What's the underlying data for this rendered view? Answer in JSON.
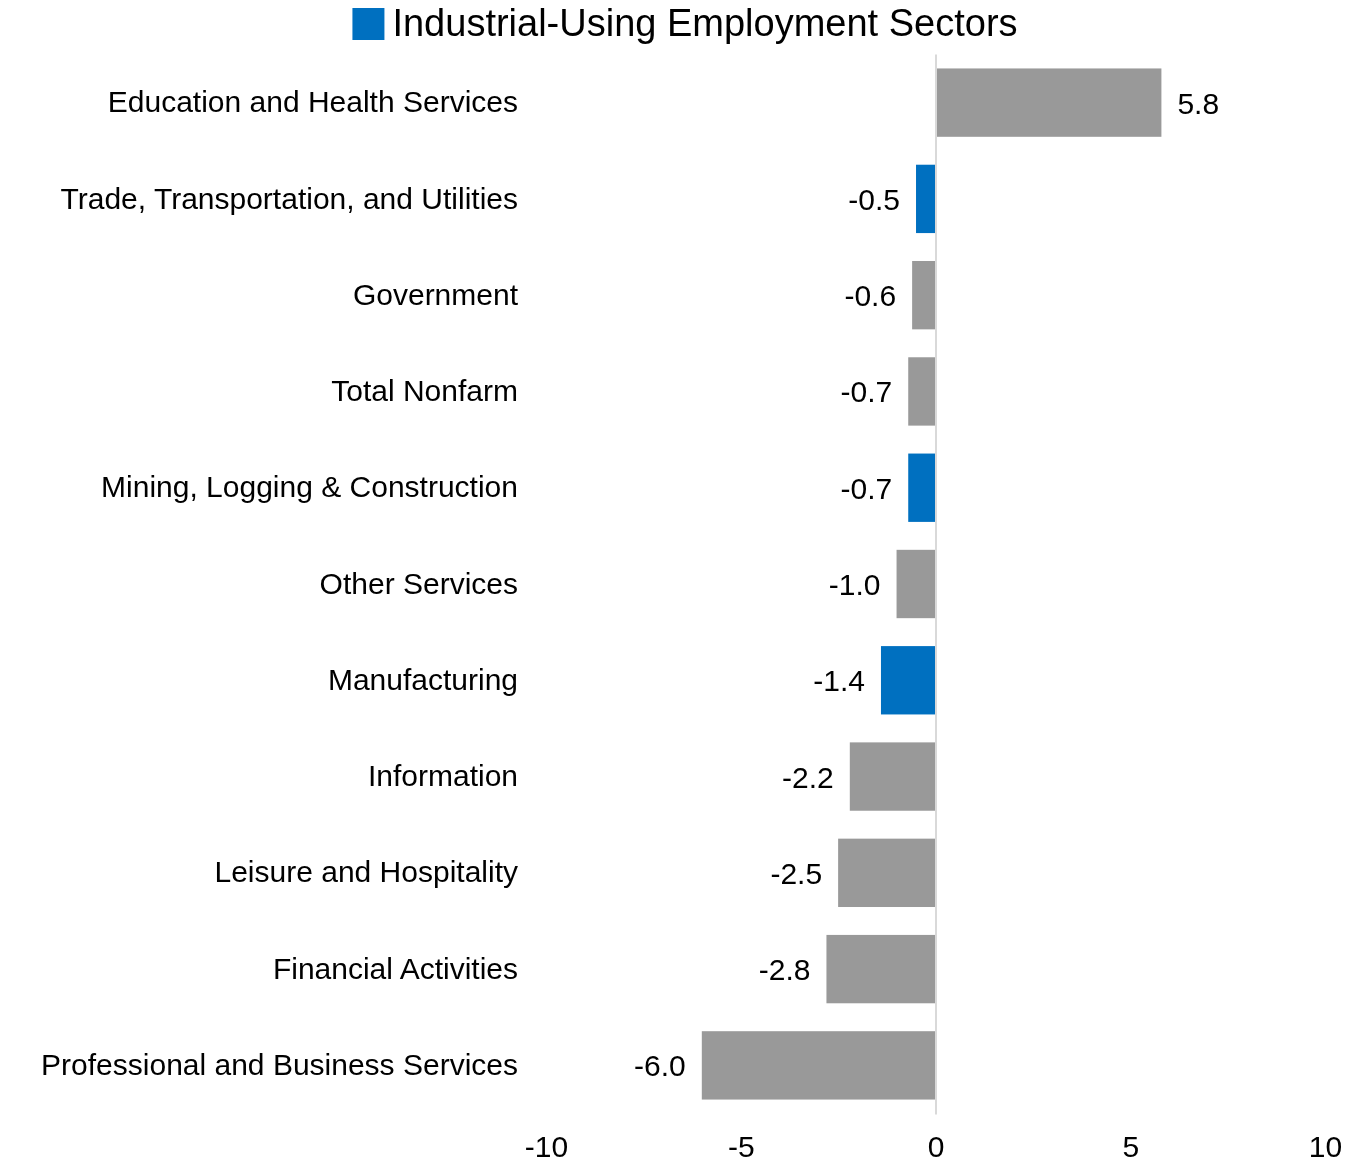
{
  "chart_data": {
    "type": "bar",
    "orientation": "horizontal",
    "categories": [
      "Education and Health Services",
      "Trade, Transportation, and Utilities",
      "Government",
      "Total Nonfarm",
      "Mining, Logging & Construction",
      "Other Services",
      "Manufacturing",
      "Information",
      "Leisure and Hospitality",
      "Financial Activities",
      "Professional and Business Services"
    ],
    "series": [
      {
        "color": "#999999",
        "values": [
          5.8,
          null,
          -0.6,
          -0.7,
          null,
          -1.0,
          null,
          -2.2,
          -2.5,
          -2.8,
          -6.0
        ]
      },
      {
        "name": "Industrial-Using Employment Sectors",
        "color": "#0070c0",
        "values": [
          null,
          -0.5,
          null,
          null,
          -0.7,
          null,
          -1.4,
          null,
          null,
          null,
          null
        ]
      }
    ],
    "value_labels": [
      "5.8",
      "-0.5",
      "-0.6",
      "-0.7",
      "-0.7",
      "-1.0",
      "-1.4",
      "-2.2",
      "-2.5",
      "-2.8",
      "-6.0"
    ],
    "xlim": [
      -10,
      10
    ],
    "xticks": [
      -10,
      -5,
      0,
      5,
      10
    ],
    "legend": "top"
  }
}
